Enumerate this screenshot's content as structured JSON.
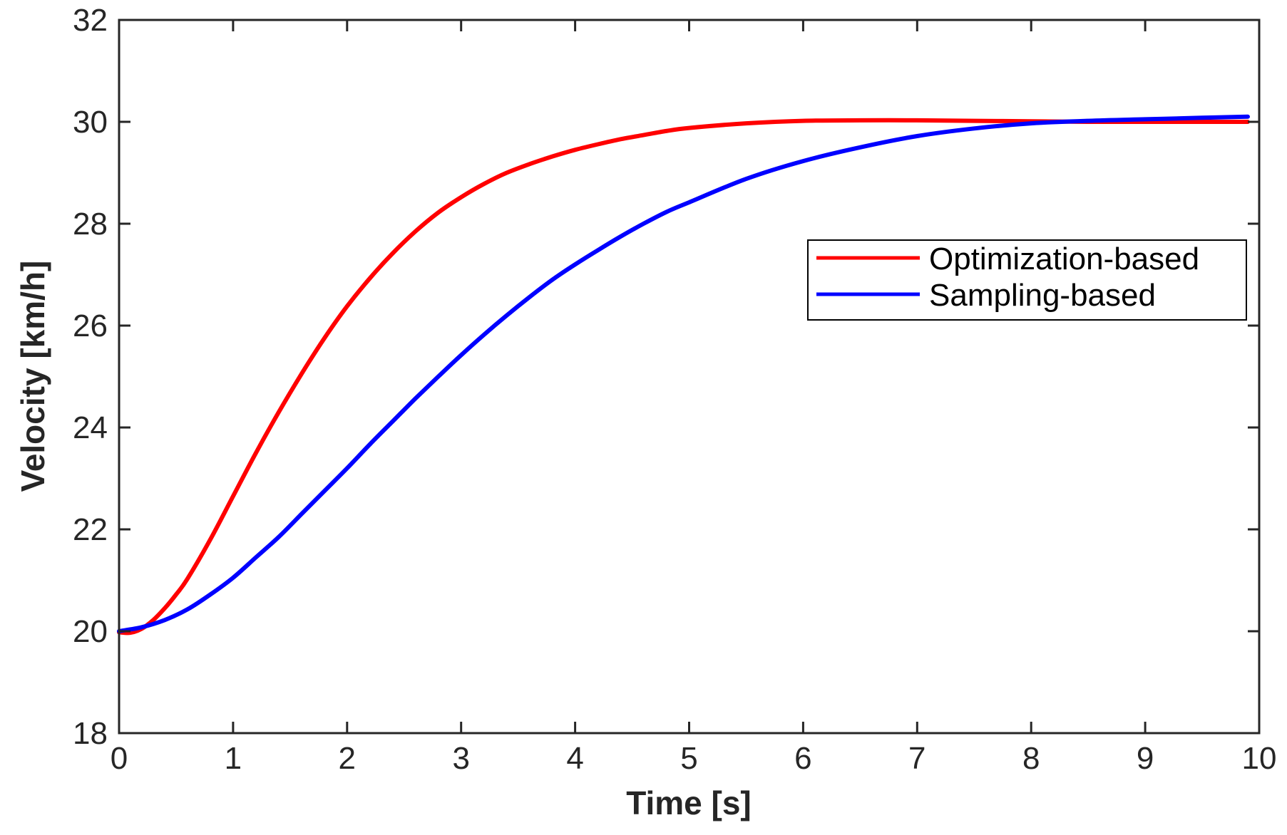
{
  "chart_data": {
    "type": "line",
    "title": "",
    "xlabel": "Time [s]",
    "ylabel": "Velocity [km/h]",
    "xlim": [
      0,
      10
    ],
    "ylim": [
      18,
      32
    ],
    "xticks": [
      0,
      1,
      2,
      3,
      4,
      5,
      6,
      7,
      8,
      9,
      10
    ],
    "yticks": [
      18,
      20,
      22,
      24,
      26,
      28,
      30,
      32
    ],
    "grid": false,
    "legend_position": "right",
    "series": [
      {
        "name": "Optimization-based",
        "color": "#ff0000",
        "x": [
          0,
          0.1,
          0.2,
          0.3,
          0.4,
          0.5,
          0.6,
          0.8,
          1.0,
          1.2,
          1.4,
          1.6,
          1.8,
          2.0,
          2.2,
          2.4,
          2.6,
          2.8,
          3.0,
          3.2,
          3.4,
          3.6,
          3.8,
          4.0,
          4.2,
          4.4,
          4.6,
          4.8,
          5.0,
          5.5,
          6.0,
          6.5,
          7.0,
          7.5,
          8.0,
          8.5,
          9.0,
          9.5,
          9.9
        ],
        "y": [
          19.98,
          19.97,
          20.05,
          20.22,
          20.45,
          20.72,
          21.03,
          21.8,
          22.65,
          23.5,
          24.3,
          25.05,
          25.75,
          26.38,
          26.93,
          27.42,
          27.85,
          28.22,
          28.52,
          28.78,
          29.0,
          29.17,
          29.32,
          29.45,
          29.56,
          29.66,
          29.74,
          29.82,
          29.88,
          29.97,
          30.02,
          30.03,
          30.03,
          30.02,
          30.01,
          30.0,
          30.0,
          30.0,
          30.0
        ]
      },
      {
        "name": "Sampling-based",
        "color": "#0000ff",
        "x": [
          0,
          0.2,
          0.4,
          0.6,
          0.8,
          1.0,
          1.2,
          1.4,
          1.6,
          1.8,
          2.0,
          2.2,
          2.4,
          2.6,
          2.8,
          3.0,
          3.2,
          3.4,
          3.6,
          3.8,
          4.0,
          4.2,
          4.4,
          4.6,
          4.8,
          5.0,
          5.5,
          6.0,
          6.5,
          7.0,
          7.5,
          8.0,
          8.5,
          9.0,
          9.5,
          9.9
        ],
        "y": [
          20.0,
          20.08,
          20.22,
          20.43,
          20.72,
          21.05,
          21.45,
          21.85,
          22.3,
          22.75,
          23.2,
          23.67,
          24.12,
          24.57,
          25.0,
          25.42,
          25.82,
          26.2,
          26.56,
          26.9,
          27.2,
          27.48,
          27.75,
          28.0,
          28.23,
          28.42,
          28.88,
          29.23,
          29.5,
          29.72,
          29.87,
          29.97,
          30.02,
          30.05,
          30.08,
          30.1
        ]
      }
    ]
  }
}
